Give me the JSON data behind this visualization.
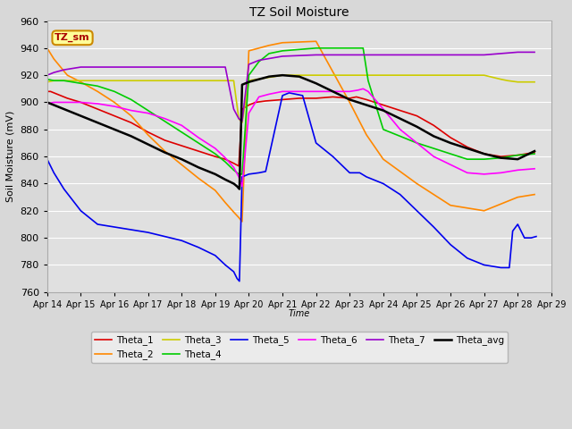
{
  "title": "TZ Soil Moisture",
  "ylabel": "Soil Moisture (mV)",
  "xlabel": "Time",
  "ylim": [
    760,
    960
  ],
  "yticks": [
    760,
    780,
    800,
    820,
    840,
    860,
    880,
    900,
    920,
    940,
    960
  ],
  "xtick_labels": [
    "Apr 14",
    "Apr 15",
    "Apr 16",
    "Apr 17",
    "Apr 18",
    "Apr 19",
    "Apr 20",
    "Apr 21",
    "Apr 22",
    "Apr 23",
    "Apr 24",
    "Apr 25",
    "Apr 26",
    "Apr 27",
    "Apr 28",
    "Apr 29"
  ],
  "legend_label": "TZ_sm",
  "fig_bg": "#d8d8d8",
  "plot_bg": "#e0e0e0",
  "grid_color": "#ffffff",
  "colors": {
    "Theta_1": "#dd0000",
    "Theta_2": "#ff8800",
    "Theta_3": "#cccc00",
    "Theta_4": "#00cc00",
    "Theta_5": "#0000ee",
    "Theta_6": "#ff00ff",
    "Theta_7": "#9900cc",
    "Theta_avg": "#000000"
  },
  "linewidth": 1.2,
  "series": {
    "Theta_1": {
      "x": [
        0.0,
        0.1,
        0.3,
        0.6,
        1.0,
        1.5,
        2.0,
        2.5,
        3.0,
        3.5,
        4.0,
        4.5,
        5.0,
        5.3,
        5.55,
        5.7,
        5.8,
        6.0,
        6.2,
        6.5,
        7.0,
        7.5,
        8.0,
        8.5,
        9.0,
        9.2,
        9.5,
        10.0,
        10.5,
        11.0,
        11.5,
        12.0,
        12.5,
        13.0,
        13.5,
        14.0,
        14.5
      ],
      "y": [
        908,
        908,
        906,
        903,
        900,
        895,
        890,
        885,
        878,
        872,
        868,
        864,
        860,
        858,
        855,
        853,
        895,
        898,
        900,
        901,
        902,
        903,
        903,
        904,
        903,
        904,
        902,
        898,
        894,
        890,
        883,
        874,
        867,
        862,
        860,
        861,
        863
      ]
    },
    "Theta_2": {
      "x": [
        0.0,
        0.2,
        0.6,
        1.0,
        1.5,
        2.0,
        2.5,
        3.0,
        3.5,
        4.0,
        4.5,
        5.0,
        5.3,
        5.55,
        5.7,
        5.8,
        6.0,
        6.3,
        6.6,
        7.0,
        8.0,
        9.0,
        9.5,
        10.0,
        11.0,
        12.0,
        13.0,
        13.5,
        14.0,
        14.5
      ],
      "y": [
        940,
        932,
        920,
        915,
        908,
        900,
        890,
        876,
        864,
        854,
        844,
        835,
        826,
        819,
        815,
        812,
        938,
        940,
        942,
        944,
        945,
        900,
        876,
        858,
        840,
        824,
        820,
        825,
        830,
        832
      ]
    },
    "Theta_3": {
      "x": [
        0.0,
        0.2,
        0.5,
        1.0,
        2.0,
        3.0,
        4.0,
        5.0,
        5.3,
        5.55,
        5.7,
        5.8,
        6.0,
        6.5,
        7.0,
        8.0,
        9.0,
        10.0,
        11.0,
        12.0,
        13.0,
        13.5,
        13.7,
        14.0,
        14.5
      ],
      "y": [
        915,
        916,
        916,
        916,
        916,
        916,
        916,
        916,
        916,
        916,
        888,
        885,
        916,
        918,
        920,
        920,
        920,
        920,
        920,
        920,
        920,
        917,
        916,
        915,
        915
      ]
    },
    "Theta_4": {
      "x": [
        0.0,
        0.2,
        0.5,
        1.0,
        1.5,
        2.0,
        2.5,
        3.0,
        3.5,
        4.0,
        4.5,
        5.0,
        5.3,
        5.55,
        5.7,
        5.8,
        6.0,
        6.3,
        6.6,
        7.0,
        8.0,
        9.0,
        9.25,
        9.4,
        9.55,
        10.0,
        10.5,
        11.0,
        12.0,
        12.5,
        13.0,
        13.5,
        14.0,
        14.5
      ],
      "y": [
        917,
        916,
        916,
        914,
        912,
        908,
        902,
        894,
        886,
        878,
        870,
        862,
        856,
        850,
        847,
        847,
        920,
        930,
        936,
        938,
        940,
        940,
        940,
        940,
        916,
        880,
        875,
        870,
        862,
        858,
        858,
        859,
        861,
        862
      ]
    },
    "Theta_5": {
      "x": [
        0.0,
        0.2,
        0.5,
        1.0,
        1.5,
        2.0,
        2.5,
        3.0,
        3.5,
        4.0,
        4.5,
        5.0,
        5.3,
        5.55,
        5.65,
        5.72,
        5.8,
        6.0,
        6.3,
        6.5,
        7.0,
        7.2,
        7.4,
        7.6,
        8.0,
        8.5,
        9.0,
        9.3,
        9.5,
        10.0,
        10.5,
        11.0,
        11.5,
        12.0,
        12.5,
        13.0,
        13.5,
        13.75,
        13.85,
        14.0,
        14.2,
        14.4,
        14.55
      ],
      "y": [
        858,
        848,
        836,
        820,
        810,
        808,
        806,
        804,
        801,
        798,
        793,
        787,
        780,
        775,
        770,
        768,
        845,
        847,
        848,
        849,
        905,
        907,
        906,
        905,
        870,
        860,
        848,
        848,
        845,
        840,
        832,
        820,
        808,
        795,
        785,
        780,
        778,
        778,
        805,
        810,
        800,
        800,
        801
      ]
    },
    "Theta_6": {
      "x": [
        0.0,
        0.2,
        0.5,
        1.0,
        1.5,
        2.0,
        2.5,
        3.0,
        3.5,
        4.0,
        4.5,
        5.0,
        5.3,
        5.55,
        5.7,
        5.8,
        6.0,
        6.3,
        6.6,
        7.0,
        8.0,
        9.0,
        9.25,
        9.4,
        9.55,
        10.0,
        10.5,
        11.0,
        11.5,
        12.0,
        12.5,
        13.0,
        13.5,
        14.0,
        14.5
      ],
      "y": [
        899,
        900,
        900,
        900,
        899,
        897,
        894,
        892,
        888,
        883,
        874,
        866,
        859,
        852,
        845,
        838,
        892,
        904,
        906,
        908,
        908,
        908,
        909,
        910,
        908,
        895,
        880,
        870,
        860,
        854,
        848,
        847,
        848,
        850,
        851
      ]
    },
    "Theta_7": {
      "x": [
        0.0,
        0.2,
        0.5,
        1.0,
        1.5,
        2.0,
        3.0,
        4.0,
        5.0,
        5.3,
        5.55,
        5.7,
        5.8,
        6.0,
        6.3,
        7.0,
        8.0,
        9.0,
        10.0,
        11.0,
        12.0,
        13.0,
        14.0,
        14.5
      ],
      "y": [
        920,
        922,
        924,
        926,
        926,
        926,
        926,
        926,
        926,
        926,
        895,
        888,
        886,
        928,
        931,
        934,
        935,
        935,
        935,
        935,
        935,
        935,
        937,
        937
      ]
    },
    "Theta_avg": {
      "x": [
        0.0,
        0.2,
        0.5,
        1.0,
        1.5,
        2.0,
        2.5,
        3.0,
        3.5,
        4.0,
        4.5,
        5.0,
        5.3,
        5.55,
        5.65,
        5.72,
        5.8,
        6.0,
        6.3,
        6.6,
        7.0,
        7.5,
        8.0,
        8.5,
        9.0,
        9.5,
        10.0,
        10.5,
        11.0,
        11.5,
        12.0,
        12.5,
        13.0,
        13.5,
        14.0,
        14.5
      ],
      "y": [
        900,
        898,
        895,
        890,
        885,
        880,
        875,
        869,
        863,
        858,
        852,
        847,
        843,
        840,
        838,
        836,
        913,
        915,
        917,
        919,
        920,
        919,
        914,
        908,
        902,
        898,
        894,
        888,
        882,
        875,
        870,
        866,
        862,
        859,
        858,
        864
      ]
    }
  }
}
